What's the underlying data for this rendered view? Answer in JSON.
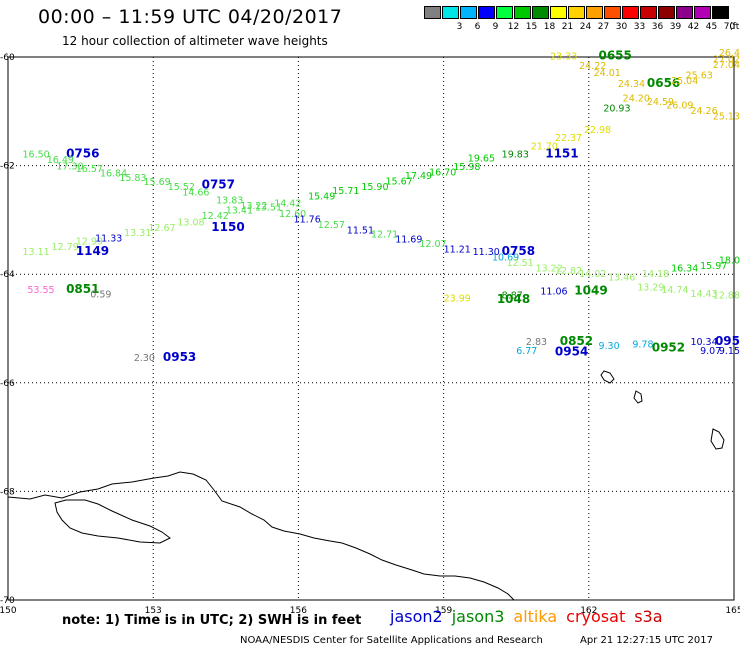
{
  "header": {
    "title": "00:00 – 11:59 UTC 04/20/2017",
    "subtitle": "12 hour collection of altimeter wave heights"
  },
  "legend": {
    "unit": "(ft)",
    "bins": [
      {
        "label": "",
        "color": "#808080"
      },
      {
        "label": "3",
        "color": "#00e6e6"
      },
      {
        "label": "6",
        "color": "#00b4ff"
      },
      {
        "label": "9",
        "color": "#0000ff"
      },
      {
        "label": "12",
        "color": "#00ff3c"
      },
      {
        "label": "15",
        "color": "#00c800"
      },
      {
        "label": "18",
        "color": "#008c00"
      },
      {
        "label": "21",
        "color": "#ffff00"
      },
      {
        "label": "24",
        "color": "#ffd200"
      },
      {
        "label": "27",
        "color": "#ffa000"
      },
      {
        "label": "30",
        "color": "#ff5000"
      },
      {
        "label": "33",
        "color": "#ff0000"
      },
      {
        "label": "36",
        "color": "#c80000"
      },
      {
        "label": "39",
        "color": "#8c0000"
      },
      {
        "label": "42",
        "color": "#8c008c"
      },
      {
        "label": "45",
        "color": "#b400b4"
      },
      {
        "label": "70",
        "color": "#000000"
      }
    ]
  },
  "map": {
    "lat_range": [
      -70,
      -60
    ],
    "lon_range": [
      150,
      165
    ],
    "lat_labels": [
      "-60",
      "-62",
      "-64",
      "-66",
      "-68",
      "-70"
    ],
    "lon_labels": [
      "150",
      "153",
      "156",
      "159",
      "162",
      "165"
    ]
  },
  "colors": {
    "jason2": "#0000cc",
    "jason3": "#008800",
    "altika": "#ff9900",
    "cryosat": "#ee0000",
    "s3a": "#cc0000",
    "low_green": "#00cc00",
    "light_green": "#44dd44",
    "pale_green": "#99ee66",
    "yellow": "#dddd00",
    "yellow_orange": "#ddbb00",
    "grey": "#777777",
    "cyan": "#00aadd",
    "pink": "#ff66cc"
  },
  "observations": [
    {
      "text": "16.50",
      "lon": 150.3,
      "lat": -61.85,
      "c": "light_green"
    },
    {
      "text": "0756",
      "lon": 151.2,
      "lat": -61.85,
      "c": "jason2",
      "time": true
    },
    {
      "text": "16.49",
      "lon": 150.8,
      "lat": -61.95,
      "c": "light_green"
    },
    {
      "text": "17.30",
      "lon": 151.0,
      "lat": -62.07,
      "c": "light_green"
    },
    {
      "text": "16.57",
      "lon": 151.4,
      "lat": -62.12,
      "c": "light_green"
    },
    {
      "text": "16.84",
      "lon": 151.9,
      "lat": -62.2,
      "c": "light_green"
    },
    {
      "text": "15.83",
      "lon": 152.3,
      "lat": -62.28,
      "c": "light_green"
    },
    {
      "text": "15.69",
      "lon": 152.8,
      "lat": -62.36,
      "c": "light_green"
    },
    {
      "text": "15.52",
      "lon": 153.3,
      "lat": -62.45,
      "c": "light_green"
    },
    {
      "text": "0757",
      "lon": 154.0,
      "lat": -62.42,
      "c": "jason2",
      "time": true
    },
    {
      "text": "14.66",
      "lon": 153.6,
      "lat": -62.55,
      "c": "light_green"
    },
    {
      "text": "13.83",
      "lon": 154.3,
      "lat": -62.7,
      "c": "light_green"
    },
    {
      "text": "13.22",
      "lon": 154.8,
      "lat": -62.8,
      "c": "light_green"
    },
    {
      "text": "12.60",
      "lon": 155.6,
      "lat": -62.95,
      "c": "light_green"
    },
    {
      "text": "11.76",
      "lon": 155.9,
      "lat": -63.05,
      "c": "jason2"
    },
    {
      "text": "12.57",
      "lon": 156.4,
      "lat": -63.15,
      "c": "light_green"
    },
    {
      "text": "11.51",
      "lon": 157.0,
      "lat": -63.25,
      "c": "jason2"
    },
    {
      "text": "12.71",
      "lon": 157.5,
      "lat": -63.32,
      "c": "light_green"
    },
    {
      "text": "11.69",
      "lon": 158.0,
      "lat": -63.42,
      "c": "jason2"
    },
    {
      "text": "12.07",
      "lon": 158.5,
      "lat": -63.5,
      "c": "light_green"
    },
    {
      "text": "11.21",
      "lon": 159.0,
      "lat": -63.6,
      "c": "jason2"
    },
    {
      "text": "11.30",
      "lon": 159.6,
      "lat": -63.65,
      "c": "jason2"
    },
    {
      "text": "0758",
      "lon": 160.2,
      "lat": -63.65,
      "c": "jason2",
      "time": true
    },
    {
      "text": "10.69",
      "lon": 160.0,
      "lat": -63.75,
      "c": "cyan"
    },
    {
      "text": "13.11",
      "lon": 150.3,
      "lat": -63.65,
      "c": "pale_green"
    },
    {
      "text": "12.79",
      "lon": 150.9,
      "lat": -63.55,
      "c": "pale_green"
    },
    {
      "text": "12.99",
      "lon": 151.4,
      "lat": -63.45,
      "c": "pale_green"
    },
    {
      "text": "1149",
      "lon": 151.4,
      "lat": -63.65,
      "c": "jason2",
      "time": true
    },
    {
      "text": "11.33",
      "lon": 151.8,
      "lat": -63.4,
      "c": "jason2"
    },
    {
      "text": "13.31",
      "lon": 152.4,
      "lat": -63.3,
      "c": "pale_green"
    },
    {
      "text": "12.67",
      "lon": 152.9,
      "lat": -63.2,
      "c": "pale_green"
    },
    {
      "text": "13.08",
      "lon": 153.5,
      "lat": -63.1,
      "c": "pale_green"
    },
    {
      "text": "12.42",
      "lon": 154.0,
      "lat": -62.98,
      "c": "light_green"
    },
    {
      "text": "13.41",
      "lon": 154.5,
      "lat": -62.88,
      "c": "light_green"
    },
    {
      "text": "1150",
      "lon": 154.2,
      "lat": -63.2,
      "c": "jason2",
      "time": true
    },
    {
      "text": "13.51",
      "lon": 155.1,
      "lat": -62.83,
      "c": "light_green"
    },
    {
      "text": "14.42",
      "lon": 155.5,
      "lat": -62.75,
      "c": "light_green"
    },
    {
      "text": "15.49",
      "lon": 156.2,
      "lat": -62.62,
      "c": "low_green"
    },
    {
      "text": "15.71",
      "lon": 156.7,
      "lat": -62.52,
      "c": "low_green"
    },
    {
      "text": "15.90",
      "lon": 157.3,
      "lat": -62.45,
      "c": "low_green"
    },
    {
      "text": "15.67",
      "lon": 157.8,
      "lat": -62.35,
      "c": "low_green"
    },
    {
      "text": "17.49",
      "lon": 158.2,
      "lat": -62.25,
      "c": "low_green"
    },
    {
      "text": "16.70",
      "lon": 158.7,
      "lat": -62.18,
      "c": "low_green"
    },
    {
      "text": "15.98",
      "lon": 159.2,
      "lat": -62.08,
      "c": "low_green"
    },
    {
      "text": "19.65",
      "lon": 159.5,
      "lat": -61.92,
      "c": "low_green"
    },
    {
      "text": "19.83",
      "lon": 160.2,
      "lat": -61.85,
      "c": "jason3"
    },
    {
      "text": "1151",
      "lon": 161.1,
      "lat": -61.85,
      "c": "jason2",
      "time": true
    },
    {
      "text": "21.70",
      "lon": 160.8,
      "lat": -61.7,
      "c": "yellow"
    },
    {
      "text": "22.37",
      "lon": 161.3,
      "lat": -61.55,
      "c": "yellow"
    },
    {
      "text": "22.98",
      "lon": 161.9,
      "lat": -61.4,
      "c": "yellow"
    },
    {
      "text": "23.33",
      "lon": 161.2,
      "lat": -60.05,
      "c": "yellow"
    },
    {
      "text": "0655",
      "lon": 162.2,
      "lat": -60.05,
      "c": "jason3",
      "time": true
    },
    {
      "text": "24.22",
      "lon": 161.8,
      "lat": -60.22,
      "c": "yellow_orange"
    },
    {
      "text": "24.01",
      "lon": 162.1,
      "lat": -60.35,
      "c": "yellow_orange"
    },
    {
      "text": "24.34",
      "lon": 162.6,
      "lat": -60.55,
      "c": "yellow_orange"
    },
    {
      "text": "0656",
      "lon": 163.2,
      "lat": -60.55,
      "c": "jason3",
      "time": true
    },
    {
      "text": "20.93",
      "lon": 162.3,
      "lat": -61.0,
      "c": "jason3"
    },
    {
      "text": "24.20",
      "lon": 162.7,
      "lat": -60.82,
      "c": "yellow_orange"
    },
    {
      "text": "24.59",
      "lon": 163.2,
      "lat": -60.88,
      "c": "yellow_orange"
    },
    {
      "text": "26.09",
      "lon": 163.6,
      "lat": -60.95,
      "c": "yellow_orange"
    },
    {
      "text": "24.26",
      "lon": 164.1,
      "lat": -61.05,
      "c": "yellow_orange"
    },
    {
      "text": "25.13",
      "lon": 164.6,
      "lat": -61.15,
      "c": "yellow_orange"
    },
    {
      "text": "25.04",
      "lon": 163.7,
      "lat": -60.5,
      "c": "yellow_orange"
    },
    {
      "text": "25.63",
      "lon": 164.0,
      "lat": -60.4,
      "c": "yellow_orange"
    },
    {
      "text": "27.04",
      "lon": 164.6,
      "lat": -60.2,
      "c": "yellow_orange"
    },
    {
      "text": "27.02",
      "lon": 164.8,
      "lat": -60.1,
      "c": "yellow_orange"
    },
    {
      "text": "26.4",
      "lon": 165.0,
      "lat": -59.98,
      "c": "yellow_orange"
    },
    {
      "text": "53.55",
      "lon": 150.4,
      "lat": -64.35,
      "c": "pink"
    },
    {
      "text": "0851",
      "lon": 151.2,
      "lat": -64.35,
      "c": "jason3",
      "time": true
    },
    {
      "text": "0.59",
      "lon": 151.7,
      "lat": -64.43,
      "c": "grey"
    },
    {
      "text": "2.30",
      "lon": 152.6,
      "lat": -65.6,
      "c": "grey"
    },
    {
      "text": "0953",
      "lon": 153.2,
      "lat": -65.6,
      "c": "jason2",
      "time": true
    },
    {
      "text": "12.51",
      "lon": 160.3,
      "lat": -63.85,
      "c": "pale_green"
    },
    {
      "text": "13.22",
      "lon": 160.9,
      "lat": -63.95,
      "c": "pale_green"
    },
    {
      "text": "12.82",
      "lon": 161.3,
      "lat": -64.0,
      "c": "pale_green"
    },
    {
      "text": "14.02",
      "lon": 161.8,
      "lat": -64.05,
      "c": "pale_green"
    },
    {
      "text": "13.46",
      "lon": 162.4,
      "lat": -64.12,
      "c": "pale_green"
    },
    {
      "text": "14.18",
      "lon": 163.1,
      "lat": -64.05,
      "c": "pale_green"
    },
    {
      "text": "16.34",
      "lon": 163.7,
      "lat": -63.95,
      "c": "low_green"
    },
    {
      "text": "15.97",
      "lon": 164.3,
      "lat": -63.9,
      "c": "low_green"
    },
    {
      "text": "18.0",
      "lon": 164.8,
      "lat": -63.8,
      "c": "low_green"
    },
    {
      "text": "13.29",
      "lon": 163.0,
      "lat": -64.3,
      "c": "pale_green"
    },
    {
      "text": "14.74",
      "lon": 163.5,
      "lat": -64.35,
      "c": "pale_green"
    },
    {
      "text": "14.43",
      "lon": 164.1,
      "lat": -64.42,
      "c": "pale_green"
    },
    {
      "text": "12.88",
      "lon": 164.7,
      "lat": -64.45,
      "c": "pale_green"
    },
    {
      "text": "11.06",
      "lon": 161.0,
      "lat": -64.37,
      "c": "jason2"
    },
    {
      "text": "1049",
      "lon": 161.7,
      "lat": -64.37,
      "c": "jason3",
      "time": true
    },
    {
      "text": "23.99",
      "lon": 159.0,
      "lat": -64.5,
      "c": "yellow"
    },
    {
      "text": "8.87",
      "lon": 160.2,
      "lat": -64.45,
      "c": "jason3"
    },
    {
      "text": "1048",
      "lon": 160.1,
      "lat": -64.53,
      "c": "jason3",
      "time": true
    },
    {
      "text": "2.83",
      "lon": 160.7,
      "lat": -65.3,
      "c": "grey"
    },
    {
      "text": "0852",
      "lon": 161.4,
      "lat": -65.3,
      "c": "jason3",
      "time": true
    },
    {
      "text": "6.77",
      "lon": 160.5,
      "lat": -65.47,
      "c": "cyan"
    },
    {
      "text": "0954",
      "lon": 161.3,
      "lat": -65.5,
      "c": "jason2",
      "time": true
    },
    {
      "text": "9.30",
      "lon": 162.2,
      "lat": -65.38,
      "c": "cyan"
    },
    {
      "text": "9.78",
      "lon": 162.9,
      "lat": -65.35,
      "c": "cyan"
    },
    {
      "text": "0952",
      "lon": 163.3,
      "lat": -65.42,
      "c": "jason3",
      "time": true
    },
    {
      "text": "10.34",
      "lon": 164.1,
      "lat": -65.3,
      "c": "jason2"
    },
    {
      "text": "095",
      "lon": 164.7,
      "lat": -65.3,
      "c": "jason2",
      "time": true
    },
    {
      "text": "9.07",
      "lon": 164.3,
      "lat": -65.47,
      "c": "jason2"
    },
    {
      "text": "9.15",
      "lon": 164.8,
      "lat": -65.47,
      "c": "jason2"
    }
  ],
  "footer": {
    "note": "note: 1) Time is in UTC; 2) SWH is in feet",
    "missions": [
      {
        "name": "jason2",
        "color": "#0000cc"
      },
      {
        "name": "jason3",
        "color": "#008800"
      },
      {
        "name": "altika",
        "color": "#ff9900"
      },
      {
        "name": "cryosat",
        "color": "#ee0000"
      },
      {
        "name": "s3a",
        "color": "#cc0000"
      }
    ],
    "credit": "NOAA/NESDIS Center for Satellite Applications and Research",
    "timestamp": "Apr 21 12:27:15 UTC 2017"
  }
}
